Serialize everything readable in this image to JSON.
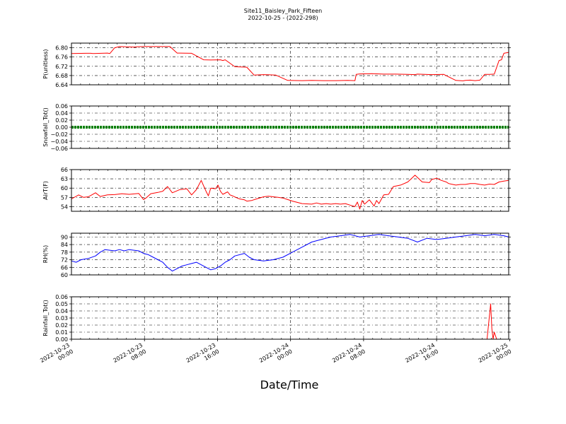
{
  "figure": {
    "title": "Site11_Baisley_Park_Fifteen",
    "subtitle": "2022-10-25 - (2022-298)",
    "xlabel": "Date/Time"
  },
  "chart_data": [
    {
      "type": "line",
      "ylabel": "P(unitless)",
      "color": "#ff0000",
      "ylim": [
        6.64,
        6.82
      ],
      "yticks": [
        6.64,
        6.68,
        6.72,
        6.76,
        6.8
      ],
      "ytick_labels": [
        "6.64",
        "6.68",
        "6.72",
        "6.76",
        "6.80"
      ],
      "x_hours": [
        0,
        6,
        8,
        9,
        15,
        16,
        18,
        20,
        26,
        27,
        30,
        33,
        35,
        36,
        41,
        44,
        50,
        55,
        58,
        62,
        63,
        64,
        68,
        73,
        76,
        80,
        85,
        90,
        96,
        100,
        105,
        110,
        115,
        118,
        118.5,
        120,
        125,
        130,
        135,
        140,
        143,
        144,
        150,
        155,
        160,
        163,
        164,
        166,
        168,
        170,
        172,
        174,
        176,
        178,
        179,
        180,
        182
      ],
      "values": [
        6.775,
        6.776,
        6.776,
        6.775,
        6.777,
        6.775,
        6.8,
        6.805,
        6.803,
        6.804,
        6.805,
        6.805,
        6.805,
        6.805,
        6.805,
        6.777,
        6.776,
        6.748,
        6.747,
        6.748,
        6.745,
        6.748,
        6.718,
        6.716,
        6.682,
        6.684,
        6.682,
        6.659,
        6.658,
        6.659,
        6.658,
        6.658,
        6.659,
        6.658,
        6.685,
        6.687,
        6.688,
        6.686,
        6.686,
        6.685,
        6.684,
        6.686,
        6.684,
        6.685,
        6.659,
        6.657,
        6.659,
        6.66,
        6.658,
        6.66,
        6.685,
        6.685,
        6.686,
        6.745,
        6.748,
        6.776,
        6.78
      ]
    },
    {
      "type": "line",
      "ylabel": "Snowfall_Tot()",
      "color": "#008000",
      "ylim": [
        -0.06,
        0.06
      ],
      "yticks": [
        -0.06,
        -0.04,
        -0.02,
        0.0,
        0.02,
        0.04,
        0.06
      ],
      "ytick_labels": [
        "−0.06",
        "−0.04",
        "−0.02",
        "0.00",
        "0.02",
        "0.04",
        "0.06"
      ],
      "x_hours": [
        0,
        182
      ],
      "values": [
        0,
        0
      ]
    },
    {
      "type": "line",
      "ylabel": "AirT(F)",
      "color": "#ff0000",
      "ylim": [
        52.5,
        66
      ],
      "yticks": [
        54,
        57,
        60,
        63,
        66
      ],
      "ytick_labels": [
        "54",
        "57",
        "60",
        "63",
        "66"
      ],
      "x_hours": [
        0,
        3,
        5,
        7,
        10,
        12,
        15,
        18,
        21,
        24,
        28,
        30,
        31,
        33,
        36,
        38,
        40,
        42,
        45,
        48,
        50,
        52,
        54,
        56,
        57,
        58,
        60,
        61,
        62,
        63,
        65,
        66,
        67,
        69,
        70,
        72,
        73,
        75,
        77,
        80,
        82,
        84,
        86,
        88,
        90,
        92,
        96,
        100,
        102,
        104,
        106,
        108,
        110,
        112,
        114,
        116,
        118,
        119,
        120,
        121,
        122,
        124,
        126,
        127,
        128,
        130,
        132,
        134,
        137,
        140,
        143,
        146,
        149,
        150,
        152,
        154,
        156,
        157,
        158,
        160,
        162,
        164,
        166,
        168,
        170,
        172,
        174,
        176,
        178,
        180,
        182
      ],
      "values": [
        56.5,
        57.8,
        57.0,
        57.2,
        58.5,
        57.3,
        57.8,
        57.9,
        58.2,
        58.0,
        58.3,
        56.3,
        56.8,
        58.2,
        58.6,
        59.0,
        60.5,
        58.5,
        59.5,
        59.8,
        57.8,
        59.5,
        62.5,
        59.0,
        57.5,
        60.0,
        59.8,
        61.0,
        59.0,
        58.0,
        58.8,
        57.8,
        57.5,
        56.8,
        56.5,
        56.2,
        55.8,
        56.0,
        56.5,
        57.2,
        57.4,
        57.2,
        57.0,
        56.8,
        56.3,
        55.8,
        55.0,
        54.8,
        55.2,
        54.8,
        55.0,
        54.8,
        55.0,
        54.8,
        55.0,
        54.5,
        54.0,
        55.5,
        53.2,
        56.0,
        54.8,
        56.2,
        54.2,
        56.0,
        55.0,
        57.8,
        58.0,
        60.5,
        61.0,
        62.0,
        64.2,
        62.0,
        61.8,
        62.8,
        63.2,
        62.5,
        62.0,
        61.5,
        61.3,
        61.0,
        61.2,
        61.2,
        61.5,
        61.5,
        61.2,
        61.0,
        61.3,
        61.2,
        62.0,
        62.3,
        62.5
      ]
    },
    {
      "type": "line",
      "ylabel": "RH(%)",
      "color": "#0000ff",
      "ylim": [
        60,
        93
      ],
      "yticks": [
        60,
        66,
        72,
        78,
        84,
        90
      ],
      "ytick_labels": [
        "60",
        "66",
        "72",
        "78",
        "84",
        "90"
      ],
      "x_hours": [
        0,
        2,
        4,
        7,
        10,
        12,
        14,
        18,
        20,
        22,
        24,
        28,
        30,
        32,
        34,
        38,
        40,
        42,
        44,
        46,
        48,
        50,
        52,
        54,
        56,
        58,
        60,
        62,
        64,
        66,
        68,
        72,
        74,
        76,
        80,
        84,
        88,
        92,
        96,
        100,
        104,
        108,
        112,
        116,
        120,
        124,
        128,
        132,
        136,
        140,
        144,
        148,
        152,
        156,
        160,
        164,
        168,
        172,
        176,
        180,
        182
      ],
      "values": [
        71,
        70,
        72,
        73,
        75,
        78,
        80,
        79,
        80,
        79,
        80,
        79,
        77,
        76,
        74,
        70,
        66,
        63,
        65,
        67,
        68,
        69,
        70,
        68,
        66,
        64,
        65,
        67,
        70,
        72,
        75,
        77,
        74,
        72,
        71,
        72,
        74,
        78,
        82,
        86,
        88,
        90,
        91,
        92,
        90,
        91,
        92,
        91,
        90,
        89,
        86,
        89,
        88,
        89,
        90,
        91,
        92,
        91,
        92,
        91,
        90
      ]
    },
    {
      "type": "line",
      "ylabel": "Rainfall_Tot()",
      "color": "#ff0000",
      "ylim": [
        0,
        0.06
      ],
      "yticks": [
        0.0,
        0.01,
        0.02,
        0.03,
        0.04,
        0.05,
        0.06
      ],
      "ytick_labels": [
        "0.00",
        "0.01",
        "0.02",
        "0.03",
        "0.04",
        "0.05",
        "0.06"
      ],
      "x_hours": [
        0,
        173,
        174.5,
        175,
        175.5,
        176,
        176.5,
        177,
        182
      ],
      "values": [
        0,
        0,
        0.05,
        0.015,
        0,
        0.01,
        0.005,
        0,
        0
      ]
    }
  ],
  "x_axis": {
    "xlim_hours": [
      0,
      182
    ],
    "ticks_hours": [
      0,
      30.4,
      60.8,
      91.2,
      121.6,
      152,
      182.4
    ],
    "tick_labels": [
      [
        "2022-10-23",
        "00:00"
      ],
      [
        "2022-10-23",
        "08:00"
      ],
      [
        "2022-10-23",
        "16:00"
      ],
      [
        "2022-10-24",
        "00:00"
      ],
      [
        "2022-10-24",
        "08:00"
      ],
      [
        "2022-10-24",
        "16:00"
      ],
      [
        "2022-10-25",
        "00:00"
      ]
    ]
  }
}
